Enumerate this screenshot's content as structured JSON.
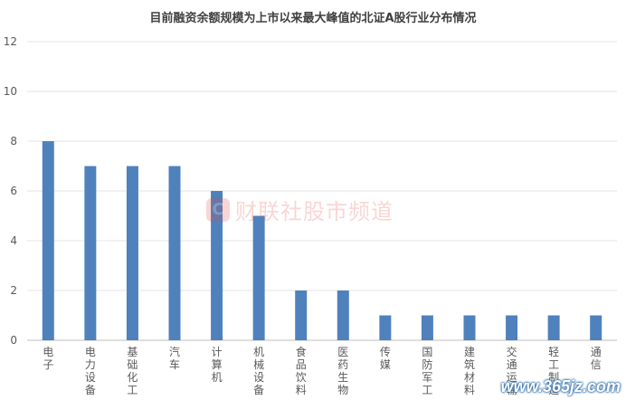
{
  "chart_data": {
    "type": "bar",
    "title": "目前融资余额规模为上市以来最大峰值的北证A股行业分布情况",
    "categories": [
      "电子",
      "电力设备",
      "基础化工",
      "汽车",
      "计算机",
      "机械设备",
      "食品饮料",
      "医药生物",
      "传媒",
      "国防军工",
      "建筑材料",
      "交通运输",
      "轻工制造",
      "通信"
    ],
    "values": [
      8,
      7,
      7,
      7,
      6,
      5,
      2,
      2,
      1,
      1,
      1,
      1,
      1,
      1
    ],
    "xlabel": "",
    "ylabel": "",
    "ylim": [
      0,
      12
    ],
    "yticks": [
      0,
      2,
      4,
      6,
      8,
      10,
      12
    ],
    "grid": true,
    "bar_color": "#4f81bd"
  },
  "watermark": {
    "logo": "C",
    "text": "财联社股市频道"
  },
  "site_stamp": "www.365jz.com"
}
